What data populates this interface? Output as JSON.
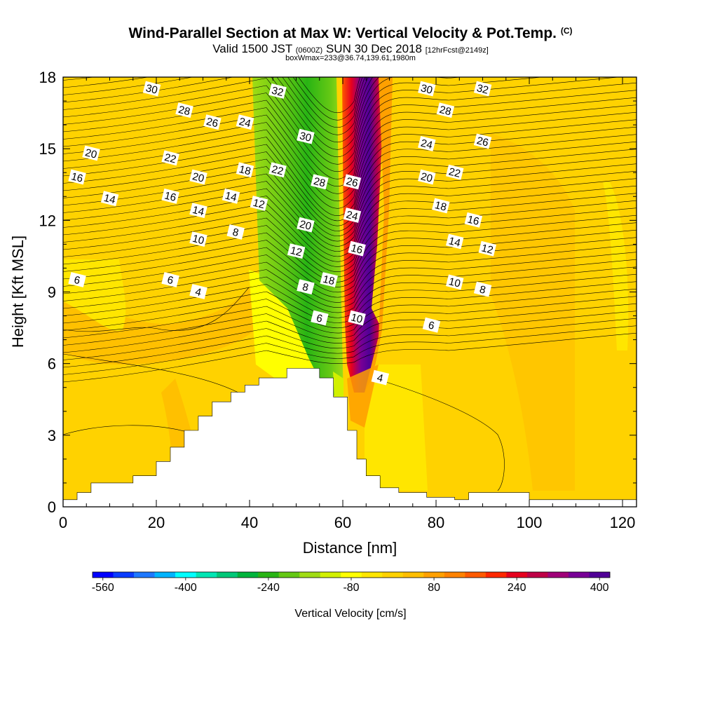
{
  "title": {
    "main": "Wind-Parallel Section at Max W: Vertical Velocity & Pot.Temp.",
    "mark": "(C)",
    "valid_prefix": "Valid 1500 JST",
    "valid_z": "(0600Z)",
    "valid_date": "SUN 30 Dec 2018",
    "fcst": "[12hrFcst@2149z]",
    "box": "boxWmax=233@36.74,139.61,1980m"
  },
  "chart_data": {
    "type": "heatmap",
    "title": "Wind-Parallel Section at Max W: Vertical Velocity & Pot.Temp.",
    "xlabel": "Distance [nm]",
    "ylabel": "Height [Kft MSL]",
    "xlim": [
      0,
      123
    ],
    "ylim": [
      0,
      18
    ],
    "xticks": [
      "0",
      "20",
      "40",
      "60",
      "80",
      "100",
      "120"
    ],
    "yticks": [
      "0",
      "3",
      "6",
      "9",
      "12",
      "15",
      "18"
    ],
    "colorbar": {
      "label": "Vertical Velocity [cm/s]",
      "tick_labels": [
        "-560",
        "-400",
        "-240",
        "-80",
        "80",
        "240",
        "400"
      ],
      "colors": [
        "#0000ff",
        "#0a3cff",
        "#1e78ff",
        "#00b4ff",
        "#00ffff",
        "#00e6b4",
        "#00c878",
        "#00b43c",
        "#28b414",
        "#64c814",
        "#a0dc14",
        "#d2f000",
        "#ffff00",
        "#ffe600",
        "#ffd200",
        "#ffbe00",
        "#ffa000",
        "#ff8200",
        "#ff5a00",
        "#ff2800",
        "#e6001e",
        "#be0046",
        "#a00078",
        "#780096",
        "#500096"
      ]
    },
    "terrain_profile": {
      "x": [
        0,
        3,
        3,
        6,
        6,
        15,
        15,
        20,
        20,
        23,
        23,
        26,
        26,
        29,
        29,
        32,
        32,
        36,
        36,
        39,
        39,
        42,
        42,
        48,
        48,
        55,
        55,
        58,
        58,
        61,
        61,
        63,
        63,
        65,
        65,
        68,
        68,
        72,
        72,
        78,
        78,
        84,
        84,
        87,
        87,
        100,
        100,
        123
      ],
      "y": [
        0.3,
        0.3,
        0.6,
        0.6,
        1.0,
        1.0,
        1.3,
        1.3,
        1.9,
        1.9,
        2.5,
        2.5,
        3.2,
        3.2,
        3.8,
        3.8,
        4.4,
        4.4,
        4.8,
        4.8,
        5.1,
        5.1,
        5.4,
        5.4,
        5.8,
        5.8,
        5.4,
        5.4,
        4.6,
        4.6,
        3.2,
        3.2,
        2.0,
        2.0,
        1.3,
        1.3,
        0.8,
        0.8,
        0.6,
        0.6,
        0.4,
        0.4,
        0.3,
        0.3,
        0.6,
        0.6,
        0.3,
        0.3
      ]
    },
    "theta_contour_labels": [
      {
        "label": "30",
        "x": 19,
        "y": 17.5
      },
      {
        "label": "32",
        "x": 46,
        "y": 17.4
      },
      {
        "label": "30",
        "x": 78,
        "y": 17.5
      },
      {
        "label": "32",
        "x": 90,
        "y": 17.5
      },
      {
        "label": "28",
        "x": 26,
        "y": 16.6
      },
      {
        "label": "28",
        "x": 82,
        "y": 16.6
      },
      {
        "label": "26",
        "x": 32,
        "y": 16.1
      },
      {
        "label": "24",
        "x": 39,
        "y": 16.1
      },
      {
        "label": "30",
        "x": 52,
        "y": 15.5
      },
      {
        "label": "24",
        "x": 78,
        "y": 15.2
      },
      {
        "label": "26",
        "x": 90,
        "y": 15.3
      },
      {
        "label": "20",
        "x": 6,
        "y": 14.8
      },
      {
        "label": "22",
        "x": 23,
        "y": 14.6
      },
      {
        "label": "22",
        "x": 46,
        "y": 14.1
      },
      {
        "label": "28",
        "x": 55,
        "y": 13.6
      },
      {
        "label": "26",
        "x": 62,
        "y": 13.6
      },
      {
        "label": "18",
        "x": 39,
        "y": 14.1
      },
      {
        "label": "20",
        "x": 29,
        "y": 13.8
      },
      {
        "label": "20",
        "x": 78,
        "y": 13.8
      },
      {
        "label": "22",
        "x": 84,
        "y": 14.0
      },
      {
        "label": "16",
        "x": 3,
        "y": 13.8
      },
      {
        "label": "14",
        "x": 10,
        "y": 12.9
      },
      {
        "label": "16",
        "x": 23,
        "y": 13.0
      },
      {
        "label": "14",
        "x": 36,
        "y": 13.0
      },
      {
        "label": "12",
        "x": 42,
        "y": 12.7
      },
      {
        "label": "18",
        "x": 81,
        "y": 12.6
      },
      {
        "label": "14",
        "x": 29,
        "y": 12.4
      },
      {
        "label": "24",
        "x": 62,
        "y": 12.2
      },
      {
        "label": "16",
        "x": 88,
        "y": 12.0
      },
      {
        "label": "20",
        "x": 52,
        "y": 11.8
      },
      {
        "label": "10",
        "x": 29,
        "y": 11.2
      },
      {
        "label": "8",
        "x": 37,
        "y": 11.5
      },
      {
        "label": "14",
        "x": 84,
        "y": 11.1
      },
      {
        "label": "12",
        "x": 50,
        "y": 10.7
      },
      {
        "label": "16",
        "x": 63,
        "y": 10.8
      },
      {
        "label": "12",
        "x": 91,
        "y": 10.8
      },
      {
        "label": "6",
        "x": 3,
        "y": 9.5
      },
      {
        "label": "6",
        "x": 23,
        "y": 9.5
      },
      {
        "label": "18",
        "x": 57,
        "y": 9.5
      },
      {
        "label": "8",
        "x": 52,
        "y": 9.2
      },
      {
        "label": "10",
        "x": 84,
        "y": 9.4
      },
      {
        "label": "4",
        "x": 29,
        "y": 9.0
      },
      {
        "label": "8",
        "x": 90,
        "y": 9.1
      },
      {
        "label": "6",
        "x": 55,
        "y": 7.9
      },
      {
        "label": "10",
        "x": 63,
        "y": 7.9
      },
      {
        "label": "6",
        "x": 79,
        "y": 7.6
      },
      {
        "label": "4",
        "x": 68,
        "y": 5.4
      }
    ]
  }
}
